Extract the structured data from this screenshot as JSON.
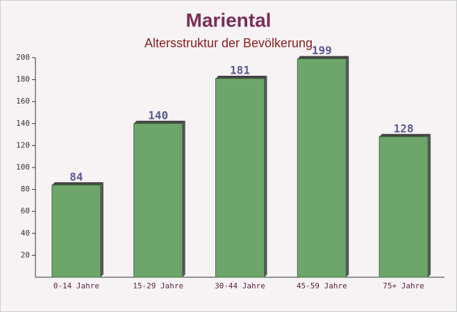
{
  "chart_data": {
    "type": "bar",
    "title": "Mariental",
    "subtitle": "Altersstruktur der Bevölkerung",
    "categories": [
      "0-14 Jahre",
      "15-29 Jahre",
      "30-44 Jahre",
      "45-59 Jahre",
      "75+ Jahre"
    ],
    "values": [
      84,
      140,
      181,
      199,
      128
    ],
    "color": "#6ea56b",
    "ylim": [
      0,
      200
    ],
    "yticks": [
      20,
      40,
      60,
      80,
      100,
      120,
      140,
      160,
      180,
      200
    ],
    "grid": false
  }
}
